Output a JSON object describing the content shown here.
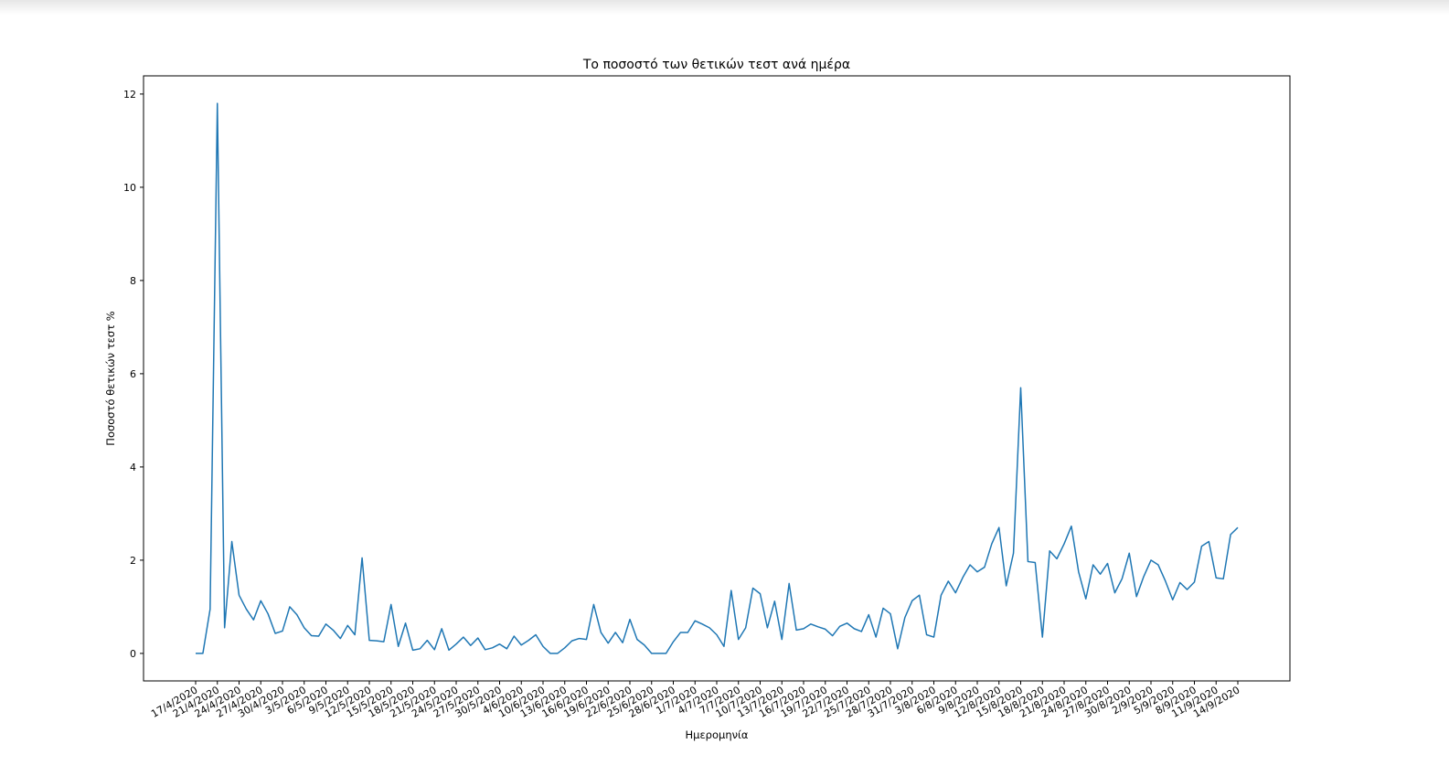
{
  "chart_data": {
    "type": "line",
    "title": "Το ποσοστό των θετικών τεστ ανά ημέρα",
    "xlabel": "Ημερομηνία",
    "ylabel": "Ποσοστό θετικών τεστ %",
    "categories": [
      "17/4/2020",
      null,
      null,
      "21/4/2020",
      null,
      null,
      "24/4/2020",
      null,
      null,
      "27/4/2020",
      null,
      null,
      "30/4/2020",
      null,
      null,
      "3/5/2020",
      null,
      null,
      "6/5/2020",
      null,
      null,
      "9/5/2020",
      null,
      null,
      "12/5/2020",
      null,
      null,
      "15/5/2020",
      null,
      null,
      "18/5/2020",
      null,
      null,
      "21/5/2020",
      null,
      null,
      "24/5/2020",
      null,
      null,
      "27/5/2020",
      null,
      null,
      "30/5/2020",
      null,
      null,
      "4/6/2020",
      null,
      null,
      "10/6/2020",
      null,
      null,
      "13/6/2020",
      null,
      null,
      "16/6/2020",
      null,
      null,
      "19/6/2020",
      null,
      null,
      "22/6/2020",
      null,
      null,
      "25/6/2020",
      null,
      null,
      "28/6/2020",
      null,
      null,
      "1/7/2020",
      null,
      null,
      "4/7/2020",
      null,
      null,
      "7/7/2020",
      null,
      null,
      "10/7/2020",
      null,
      null,
      "13/7/2020",
      null,
      null,
      "16/7/2020",
      null,
      null,
      "19/7/2020",
      null,
      null,
      "22/7/2020",
      null,
      null,
      "25/7/2020",
      null,
      null,
      "28/7/2020",
      null,
      null,
      "31/7/2020",
      null,
      null,
      "3/8/2020",
      null,
      null,
      "6/8/2020",
      null,
      null,
      "9/8/2020",
      null,
      null,
      "12/8/2020",
      null,
      null,
      "15/8/2020",
      null,
      null,
      "18/8/2020",
      null,
      null,
      "21/8/2020",
      null,
      null,
      "24/8/2020",
      null,
      null,
      "27/8/2020",
      null,
      null,
      "30/8/2020",
      null,
      null,
      "2/9/2020",
      null,
      null,
      "5/9/2020",
      null,
      null,
      "8/9/2020",
      null,
      null,
      "11/9/2020",
      null,
      null,
      "14/9/2020"
    ],
    "values": [
      0,
      0,
      0.95,
      11.8,
      0.55,
      2.4,
      1.25,
      0.95,
      0.72,
      1.13,
      0.85,
      0.43,
      0.48,
      1.0,
      0.83,
      0.55,
      0.38,
      0.37,
      0.63,
      0.5,
      0.32,
      0.6,
      0.4,
      2.05,
      0.28,
      0.27,
      0.25,
      1.05,
      0.15,
      0.65,
      0.07,
      0.1,
      0.28,
      0.08,
      0.53,
      0.07,
      0.2,
      0.35,
      0.17,
      0.33,
      0.08,
      0.12,
      0.2,
      0.1,
      0.37,
      0.18,
      0.28,
      0.4,
      0.15,
      0,
      0,
      0.12,
      0.27,
      0.32,
      0.3,
      1.05,
      0.45,
      0.22,
      0.45,
      0.23,
      0.73,
      0.3,
      0.18,
      0,
      0,
      0,
      0.25,
      0.45,
      0.45,
      0.7,
      0.63,
      0.55,
      0.4,
      0.15,
      1.35,
      0.3,
      0.55,
      1.4,
      1.28,
      0.55,
      1.12,
      0.3,
      1.5,
      0.5,
      0.53,
      0.63,
      0.57,
      0.52,
      0.38,
      0.58,
      0.65,
      0.53,
      0.47,
      0.83,
      0.35,
      0.97,
      0.85,
      0.1,
      0.77,
      1.13,
      1.25,
      0.4,
      0.35,
      1.25,
      1.55,
      1.3,
      1.63,
      1.9,
      1.75,
      1.85,
      2.35,
      2.7,
      1.45,
      2.15,
      5.7,
      1.97,
      1.95,
      0.35,
      2.2,
      2.03,
      2.35,
      2.73,
      1.75,
      1.17,
      1.9,
      1.7,
      1.93,
      1.3,
      1.6,
      2.15,
      1.22,
      1.65,
      2.0,
      1.9,
      1.55,
      1.15,
      1.52,
      1.37,
      1.53,
      2.3,
      2.4,
      1.62,
      1.6,
      2.55,
      2.7
    ],
    "color": "#1f77b4",
    "ylim": [
      -0.59,
      12.39
    ],
    "yticks": [
      0,
      2,
      4,
      6,
      8,
      10,
      12
    ]
  }
}
